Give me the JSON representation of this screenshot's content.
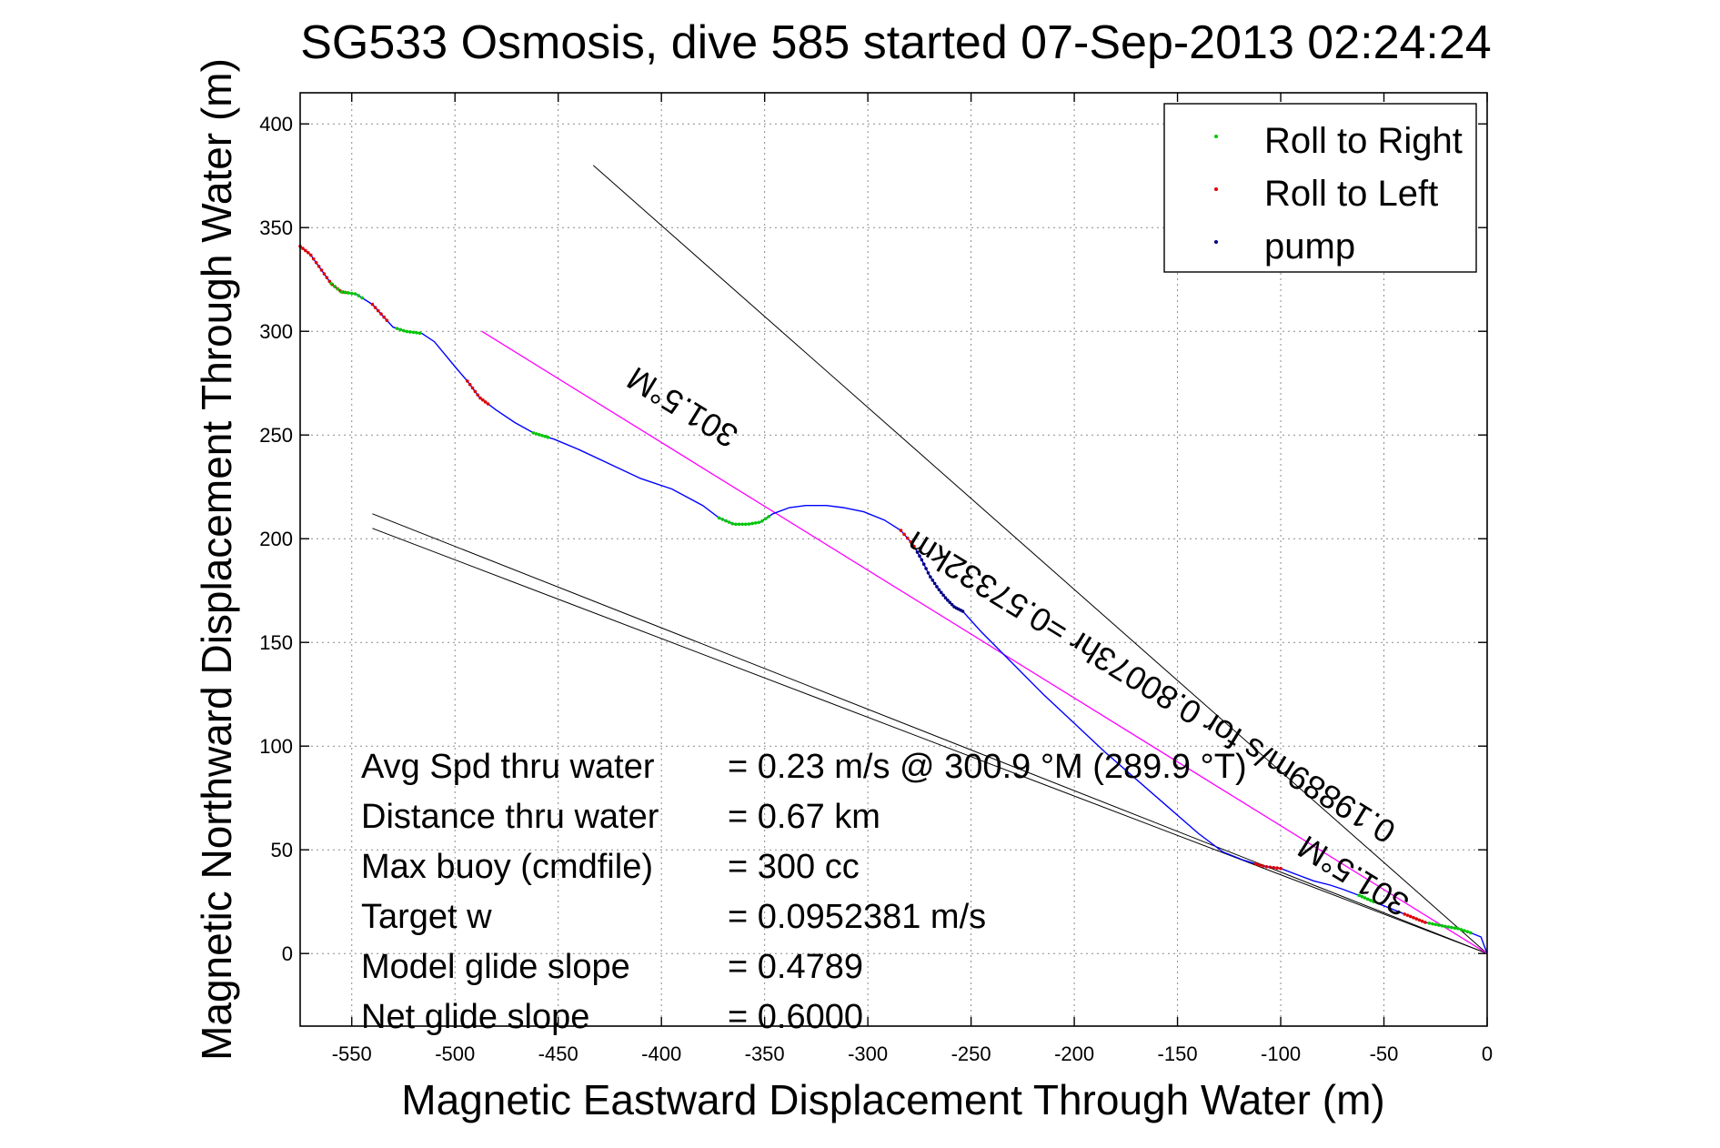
{
  "chart_data": {
    "type": "line",
    "title": "SG533 Osmosis, dive 585 started 07-Sep-2013 02:24:24",
    "xlabel": "Magnetic Eastward Displacement Through Water (m)",
    "ylabel": "Magnetic Northward Displacement Through Water (m)",
    "xlim": [
      -575,
      0
    ],
    "ylim": [
      -35,
      415
    ],
    "xticks": [
      -550,
      -500,
      -450,
      -400,
      -350,
      -300,
      -250,
      -200,
      -150,
      -100,
      -50,
      0
    ],
    "yticks": [
      0,
      50,
      100,
      150,
      200,
      250,
      300,
      350,
      400
    ],
    "grid": true,
    "legend_position": "top-right",
    "colors": {
      "track": "#0000ff",
      "roll_right": "#00c800",
      "roll_left": "#e00000",
      "pump": "#000080",
      "bearing_line": "#ff00ff",
      "cone_lines": "#000000"
    },
    "series": [
      {
        "name": "Roll to Right",
        "kind": "markers",
        "color": "#00c800"
      },
      {
        "name": "Roll to Left",
        "kind": "markers",
        "color": "#e00000"
      },
      {
        "name": "pump",
        "kind": "markers",
        "color": "#000080"
      }
    ],
    "track": {
      "x": [
        -575,
        -570,
        -565,
        -560,
        -555,
        -548,
        -540,
        -530,
        -524,
        -516,
        -510,
        -505,
        -500,
        -494,
        -488,
        -480,
        -471,
        -462,
        -452,
        -440,
        -425,
        -410,
        -395,
        -380,
        -372,
        -365,
        -358,
        -352,
        -346,
        -338,
        -330,
        -320,
        -312,
        -302,
        -292,
        -284,
        -278,
        -274,
        -270,
        -266,
        -262,
        -258,
        -254,
        -245,
        -230,
        -215,
        -200,
        -185,
        -170,
        -155,
        -140,
        -128,
        -118,
        -108,
        -100,
        -92,
        -84,
        -76,
        -70,
        -62,
        -55,
        -50,
        -45,
        -40,
        -35,
        -30,
        -25,
        -20,
        -14,
        -8,
        -3,
        0
      ],
      "y": [
        341,
        337,
        330,
        323,
        319,
        318,
        313,
        302,
        300,
        299,
        295,
        289,
        283,
        276,
        268,
        262,
        256,
        251,
        248,
        243,
        236,
        229,
        224,
        216,
        210,
        207,
        207,
        208,
        212,
        215,
        216,
        216,
        215,
        213,
        209,
        204,
        197,
        190,
        182,
        176,
        171,
        167,
        165,
        155,
        140,
        125,
        111,
        97,
        84,
        71,
        58,
        49,
        45,
        42,
        41,
        38,
        35,
        33,
        31,
        28,
        25,
        23,
        21,
        19,
        17,
        15,
        14,
        13,
        12,
        10,
        8,
        0
      ]
    },
    "markers": [
      {
        "series": "Roll to Left",
        "x_range": [
          -575,
          -553
        ],
        "count": 18
      },
      {
        "series": "Roll to Right",
        "x_range": [
          -560,
          -545
        ],
        "count": 10
      },
      {
        "series": "Roll to Left",
        "x_range": [
          -540,
          -533
        ],
        "count": 6
      },
      {
        "series": "Roll to Right",
        "x_range": [
          -528,
          -517
        ],
        "count": 8
      },
      {
        "series": "Roll to Left",
        "x_range": [
          -494,
          -484
        ],
        "count": 9
      },
      {
        "series": "Roll to Right",
        "x_range": [
          -462,
          -455
        ],
        "count": 6
      },
      {
        "series": "Roll to Right",
        "x_range": [
          -372,
          -348
        ],
        "count": 16
      },
      {
        "series": "Roll to Left",
        "x_range": [
          -284,
          -276
        ],
        "count": 6
      },
      {
        "series": "pump",
        "x_range": [
          -276,
          -254
        ],
        "count": 22
      },
      {
        "series": "Roll to Left",
        "x_range": [
          -112,
          -100
        ],
        "count": 8
      },
      {
        "series": "Roll to Right",
        "x_range": [
          -62,
          -55
        ],
        "count": 6
      },
      {
        "series": "Roll to Left",
        "x_range": [
          -40,
          -30
        ],
        "count": 8
      },
      {
        "series": "Roll to Right",
        "x_range": [
          -28,
          -8
        ],
        "count": 14
      }
    ],
    "bearing_line": {
      "x": [
        -487,
        0
      ],
      "y": [
        300,
        0
      ]
    },
    "cone_lines": [
      {
        "x": [
          -433,
          0
        ],
        "y": [
          380,
          0
        ]
      },
      {
        "x": [
          -540,
          0
        ],
        "y": [
          212,
          0
        ]
      },
      {
        "x": [
          -540,
          0
        ],
        "y": [
          205,
          0
        ]
      }
    ],
    "annotations": [
      {
        "text": "301.5°M",
        "x": -387,
        "y": 268,
        "rotation_deg": 211.5
      },
      {
        "text": "0.19889m/s for 0.80073hr =0.57332km",
        "x": -160,
        "y": 133,
        "rotation_deg": 211.5
      },
      {
        "text": "301.5°M",
        "x": -62,
        "y": 42,
        "rotation_deg": 211.5
      }
    ],
    "summary": [
      {
        "label": "Avg Spd thru water",
        "value": "=  0.23 m/s @ 300.9 °M (289.9 °T)"
      },
      {
        "label": "Distance thru water",
        "value": "=  0.67 km"
      },
      {
        "label": "Max buoy (cmdfile)",
        "value": "= 300 cc"
      },
      {
        "label": "Target w",
        "value": "= 0.0952381 m/s"
      },
      {
        "label": "Model glide slope",
        "value": "= 0.4789"
      },
      {
        "label": "Net glide slope",
        "value": "= 0.6000"
      }
    ]
  }
}
